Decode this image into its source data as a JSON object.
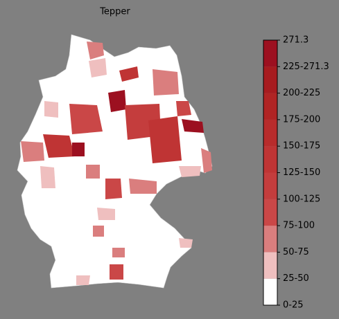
{
  "title": "Tepper",
  "colorbar": {
    "labels": [
      "0-25",
      "25-50",
      "50-75",
      "75-100",
      "100-125",
      "125-150",
      "150-175",
      "175-200",
      "200-225",
      "225-271.3",
      "271.3"
    ],
    "colors": [
      "#ffffff",
      "#efbfbf",
      "#da7e7e",
      "#ca4747",
      "#c43d3d",
      "#bf3434",
      "#b82c2c",
      "#b02424",
      "#a71b1f",
      "#9c1020"
    ]
  }
}
